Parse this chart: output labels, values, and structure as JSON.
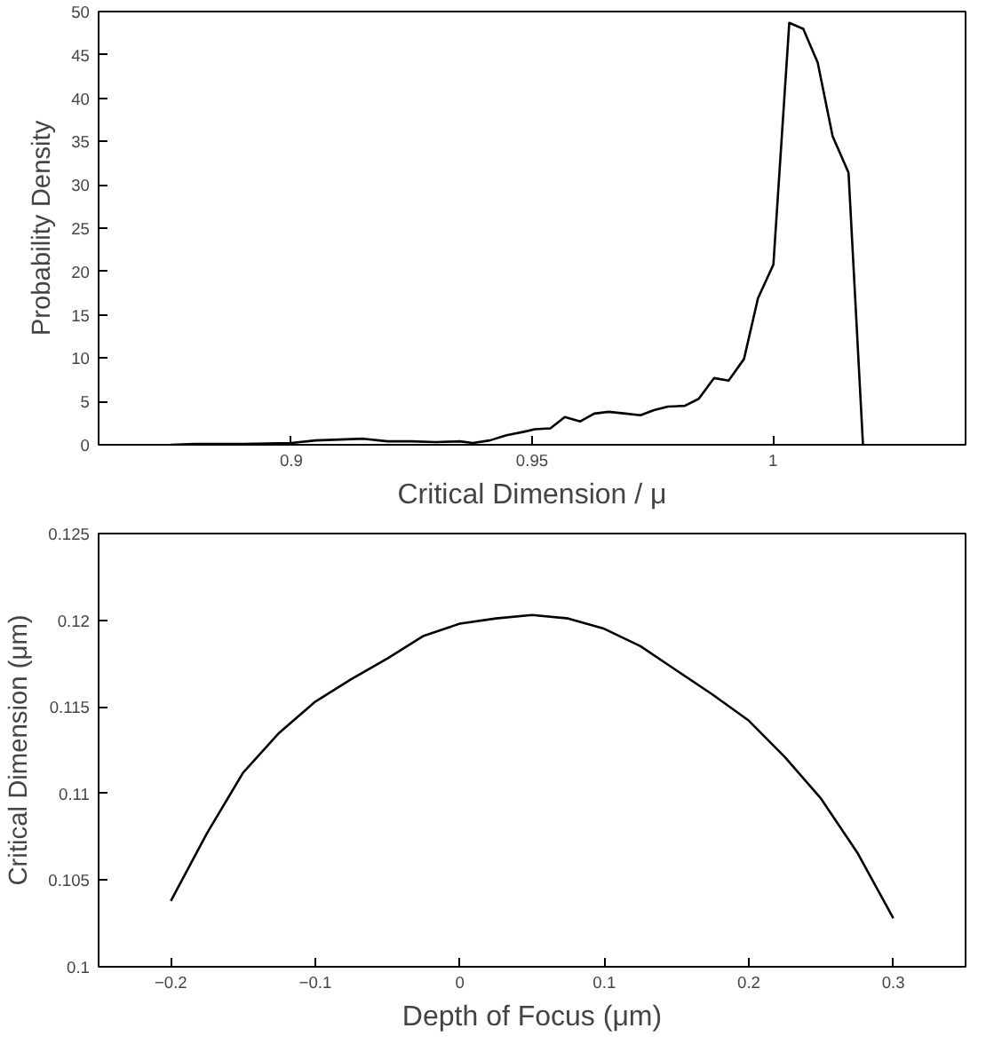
{
  "chart_data": [
    {
      "type": "line",
      "xlabel": "Critical Dimension / μ",
      "ylabel": "Probability Density",
      "xlim": [
        0.86,
        1.04
      ],
      "ylim": [
        0,
        50
      ],
      "xticks": [
        0.9,
        0.95,
        1
      ],
      "yticks": [
        0,
        5,
        10,
        15,
        20,
        25,
        30,
        35,
        40,
        45,
        50
      ],
      "series": [
        {
          "color": "#000000",
          "x": [
            0.875,
            0.88,
            0.89,
            0.9,
            0.905,
            0.91,
            0.915,
            0.92,
            0.925,
            0.93,
            0.935,
            0.9377,
            0.9412,
            0.9447,
            0.9483,
            0.9506,
            0.9538,
            0.9568,
            0.96,
            0.9629,
            0.9659,
            0.9694,
            0.9725,
            0.9753,
            0.9782,
            0.9817,
            0.9846,
            0.9878,
            0.9908,
            0.994,
            0.9969,
            1.0001,
            1.0034,
            1.0063,
            1.0093,
            1.0124,
            1.0157,
            1.0187
          ],
          "values": [
            0,
            0.1,
            0.1,
            0.2,
            0.5,
            0.6,
            0.7,
            0.4,
            0.4,
            0.3,
            0.4,
            0.2,
            0.5,
            1.1,
            1.5,
            1.8,
            1.9,
            3.2,
            2.7,
            3.6,
            3.8,
            3.6,
            3.4,
            4.0,
            4.4,
            4.5,
            5.3,
            7.7,
            7.4,
            9.9,
            16.9,
            20.8,
            48.7,
            48.0,
            44.1,
            35.6,
            31.4,
            0
          ]
        }
      ]
    },
    {
      "type": "line",
      "xlabel": "Depth of Focus (μm)",
      "ylabel": "Critical Dimension (μm)",
      "xlim": [
        -0.25,
        0.35
      ],
      "ylim": [
        0.1,
        0.125
      ],
      "xticks": [
        -0.2,
        -0.1,
        0,
        0.1,
        0.2,
        0.3
      ],
      "yticks": [
        0.1,
        0.105,
        0.11,
        0.115,
        0.12,
        0.125
      ],
      "series": [
        {
          "color": "#000000",
          "x": [
            -0.2,
            -0.175,
            -0.15,
            -0.125,
            -0.1,
            -0.075,
            -0.05,
            -0.025,
            0,
            0.025,
            0.05,
            0.075,
            0.1,
            0.125,
            0.15,
            0.175,
            0.2,
            0.225,
            0.25,
            0.275,
            0.3
          ],
          "values": [
            0.1038,
            0.1077,
            0.1112,
            0.1135,
            0.1153,
            0.1166,
            0.1178,
            0.1191,
            0.1198,
            0.1201,
            0.1203,
            0.1201,
            0.1195,
            0.1185,
            0.1171,
            0.1157,
            0.1142,
            0.1121,
            0.1097,
            0.1066,
            0.1028
          ]
        }
      ]
    }
  ]
}
